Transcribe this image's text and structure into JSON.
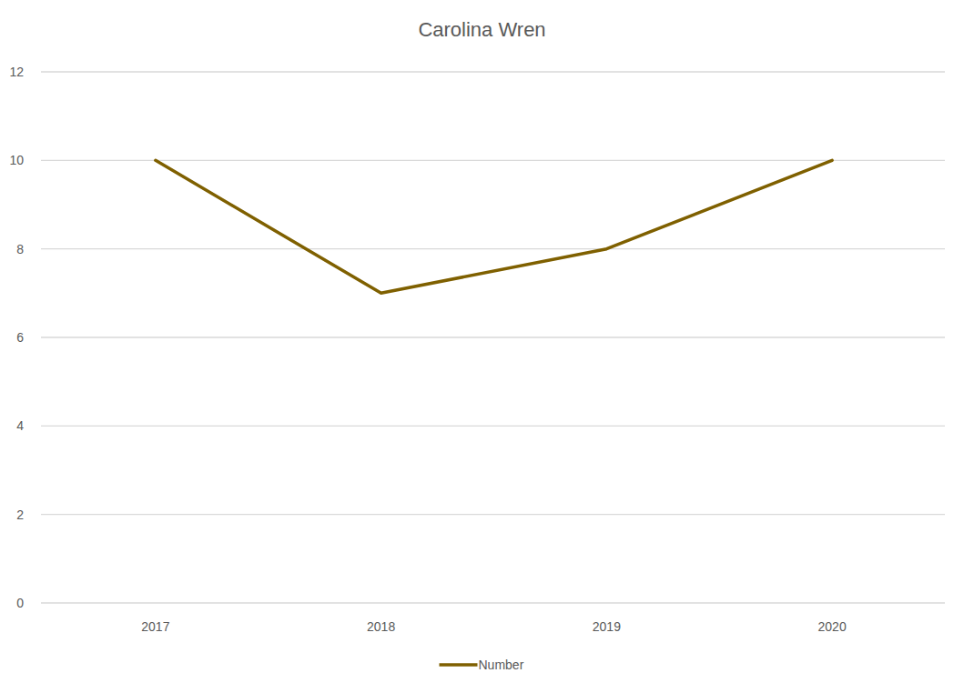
{
  "chart_data": {
    "type": "line",
    "title": "Carolina Wren",
    "categories": [
      "2017",
      "2018",
      "2019",
      "2020"
    ],
    "series": [
      {
        "name": "Number",
        "color": "#7f6000",
        "values": [
          10,
          7,
          8,
          10
        ]
      }
    ],
    "ylim": [
      0,
      12
    ],
    "yticks": [
      0,
      2,
      4,
      6,
      8,
      10,
      12
    ],
    "grid": true,
    "legend": "bottom"
  }
}
